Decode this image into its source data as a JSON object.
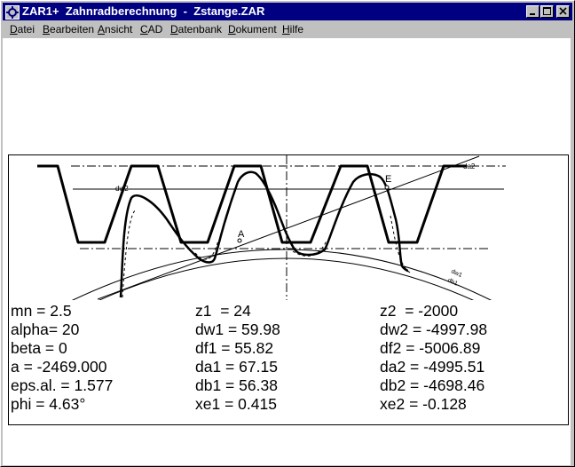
{
  "window": {
    "title": "ZAR1+  Zahnradberechnung  -  Zstange.ZAR",
    "icon": "gear-app-icon",
    "buttons": [
      "minimize",
      "maximize",
      "close"
    ]
  },
  "menu": [
    {
      "accel": "D",
      "rest": "atei"
    },
    {
      "accel": "B",
      "rest": "earbeiten"
    },
    {
      "accel": "A",
      "rest": "nsicht"
    },
    {
      "accel": "C",
      "rest": "AD"
    },
    {
      "accel": "D",
      "rest": "atenbank"
    },
    {
      "accel": "D",
      "rest": "okument"
    },
    {
      "accel": "H",
      "rest": "ilfe"
    }
  ],
  "drawing": {
    "labels": {
      "da2": "da2",
      "dw2": "dw2",
      "E": "E",
      "A": "A",
      "dw1": "dw1",
      "db1": "db1"
    }
  },
  "results": {
    "col1": [
      "mn = 2.5",
      "alpha= 20",
      "beta = 0",
      "a = -2469.000",
      "eps.al. = 1.577",
      "phi = 4.63°"
    ],
    "col2": [
      "z1  = 24",
      "dw1 = 59.98",
      "df1 = 55.82",
      "da1 = 67.15",
      "db1 = 56.38",
      "xe1 = 0.415"
    ],
    "col3": [
      "z2  = -2000",
      "dw2 = -4997.98",
      "df2 = -5006.89",
      "da2 = -4995.51",
      "db2 = -4698.46",
      "xe2 = -0.128"
    ]
  }
}
